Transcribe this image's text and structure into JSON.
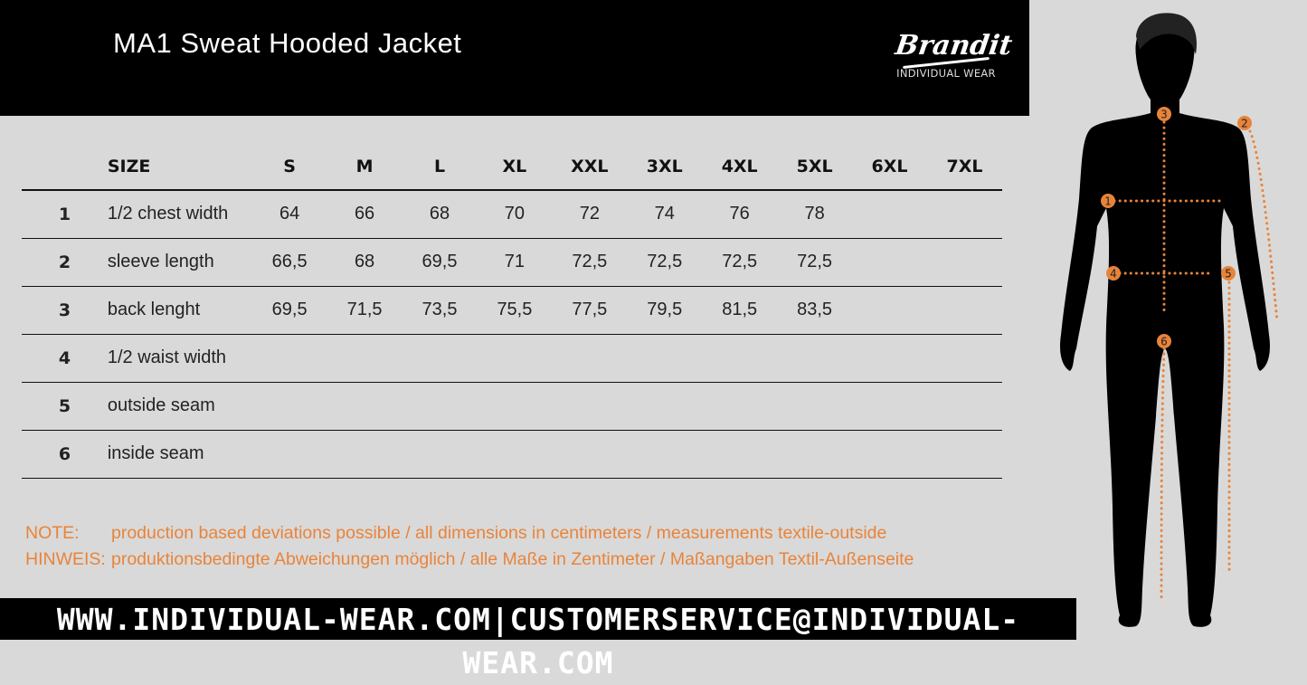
{
  "header": {
    "title": "MA1 Sweat Hooded Jacket",
    "logo": {
      "brand": "Brandit",
      "tagline": "INDIVIDUAL WEAR"
    }
  },
  "table": {
    "size_label": "SIZE",
    "sizes": [
      "S",
      "M",
      "L",
      "XL",
      "XXL",
      "3XL",
      "4XL",
      "5XL",
      "6XL",
      "7XL"
    ],
    "rows": [
      {
        "num": "1",
        "label": "1/2 chest width",
        "values": [
          "64",
          "66",
          "68",
          "70",
          "72",
          "74",
          "76",
          "78",
          "",
          ""
        ]
      },
      {
        "num": "2",
        "label": "sleeve length",
        "values": [
          "66,5",
          "68",
          "69,5",
          "71",
          "72,5",
          "72,5",
          "72,5",
          "72,5",
          "",
          ""
        ]
      },
      {
        "num": "3",
        "label": "back lenght",
        "values": [
          "69,5",
          "71,5",
          "73,5",
          "75,5",
          "77,5",
          "79,5",
          "81,5",
          "83,5",
          "",
          ""
        ]
      },
      {
        "num": "4",
        "label": "1/2 waist width",
        "values": [
          "",
          "",
          "",
          "",
          "",
          "",
          "",
          "",
          "",
          ""
        ]
      },
      {
        "num": "5",
        "label": "outside seam",
        "values": [
          "",
          "",
          "",
          "",
          "",
          "",
          "",
          "",
          "",
          ""
        ]
      },
      {
        "num": "6",
        "label": "inside seam",
        "values": [
          "",
          "",
          "",
          "",
          "",
          "",
          "",
          "",
          "",
          ""
        ]
      }
    ]
  },
  "notes": [
    {
      "key": "NOTE:",
      "text": "production based deviations possible / all dimensions in centimeters / measurements textile-outside"
    },
    {
      "key": "HINWEIS:",
      "text": "produktionsbedingte Abweichungen möglich / alle Maße in Zentimeter / Maßangaben Textil-Außenseite"
    }
  ],
  "footer": {
    "text": "WWW.INDIVIDUAL-WEAR.COM|CUSTOMERSERVICE@INDIVIDUAL-WEAR.COM"
  },
  "figure": {
    "markers": [
      "1",
      "2",
      "3",
      "4",
      "5",
      "6"
    ]
  },
  "colors": {
    "accent": "#e8843a",
    "background": "#d9d9d9",
    "header": "#000000"
  }
}
